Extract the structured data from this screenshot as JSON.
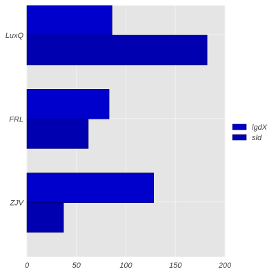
{
  "chart_data": {
    "type": "bar",
    "orientation": "horizontal",
    "categories": [
      "LuxQ",
      "FRL",
      "ZJV"
    ],
    "series": [
      {
        "name": "lgdX",
        "values": [
          86,
          83,
          128
        ],
        "color": "#0000cc"
      },
      {
        "name": "sld",
        "values": [
          182,
          62,
          37
        ],
        "color": "#0000b0"
      }
    ],
    "xlim": [
      0,
      200
    ],
    "xticks": [
      0,
      50,
      100,
      150,
      200
    ],
    "xtick_labels": [
      "0",
      "50",
      "100",
      "150",
      "200"
    ],
    "grid": true,
    "legend_position": "right",
    "background_color": "#e5e5e5"
  }
}
